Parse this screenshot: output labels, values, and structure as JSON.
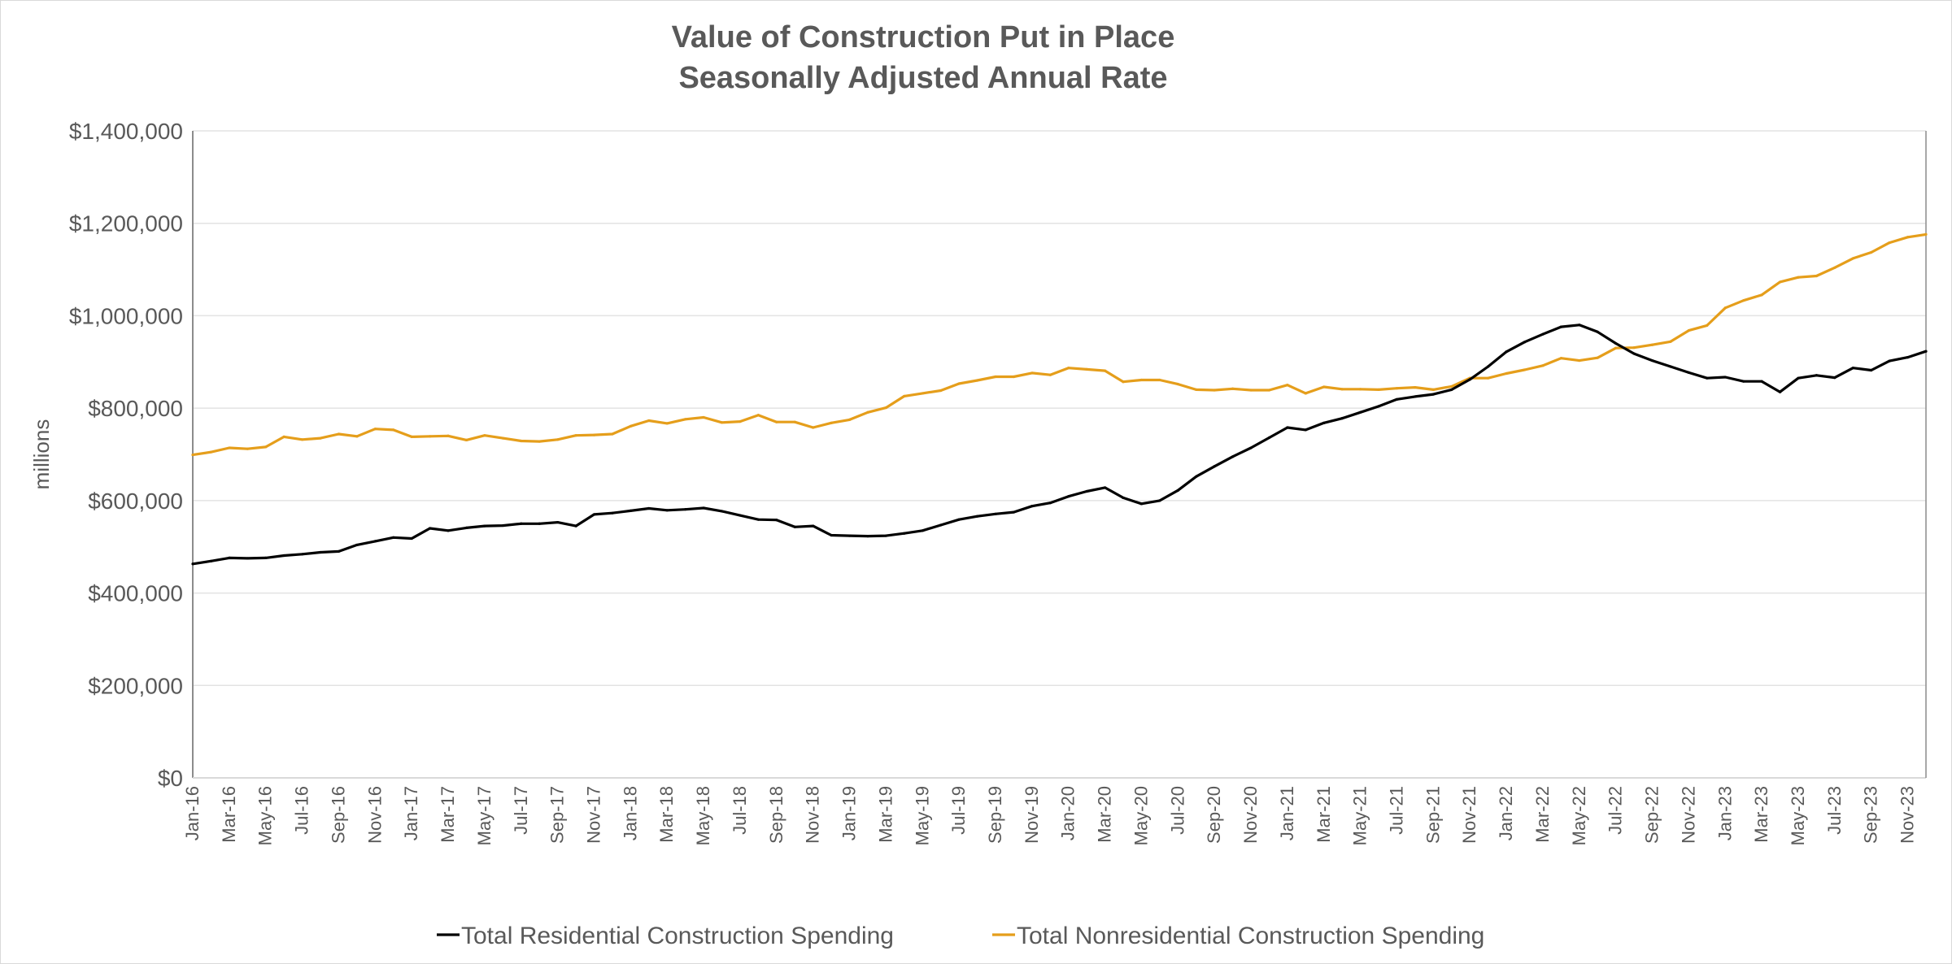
{
  "chart_data": {
    "type": "line",
    "title": [
      "Value of Construction Put in Place",
      "Seasonally Adjusted Annual Rate"
    ],
    "xlabel": "",
    "ylabel": "millions",
    "ylim": [
      0,
      1400000
    ],
    "yticks": [
      0,
      200000,
      400000,
      600000,
      800000,
      1000000,
      1200000,
      1400000
    ],
    "ytick_labels": [
      "$0",
      "$200,000",
      "$400,000",
      "$600,000",
      "$800,000",
      "$1,000,000",
      "$1,200,000",
      "$1,400,000"
    ],
    "grid": true,
    "legend_position": "bottom",
    "x": [
      "Jan-16",
      "Feb-16",
      "Mar-16",
      "Apr-16",
      "May-16",
      "Jun-16",
      "Jul-16",
      "Aug-16",
      "Sep-16",
      "Oct-16",
      "Nov-16",
      "Dec-16",
      "Jan-17",
      "Feb-17",
      "Mar-17",
      "Apr-17",
      "May-17",
      "Jun-17",
      "Jul-17",
      "Aug-17",
      "Sep-17",
      "Oct-17",
      "Nov-17",
      "Dec-17",
      "Jan-18",
      "Feb-18",
      "Mar-18",
      "Apr-18",
      "May-18",
      "Jun-18",
      "Jul-18",
      "Aug-18",
      "Sep-18",
      "Oct-18",
      "Nov-18",
      "Dec-18",
      "Jan-19",
      "Feb-19",
      "Mar-19",
      "Apr-19",
      "May-19",
      "Jun-19",
      "Jul-19",
      "Aug-19",
      "Sep-19",
      "Oct-19",
      "Nov-19",
      "Dec-19",
      "Jan-20",
      "Feb-20",
      "Mar-20",
      "Apr-20",
      "May-20",
      "Jun-20",
      "Jul-20",
      "Aug-20",
      "Sep-20",
      "Oct-20",
      "Nov-20",
      "Dec-20",
      "Jan-21",
      "Feb-21",
      "Mar-21",
      "Apr-21",
      "May-21",
      "Jun-21",
      "Jul-21",
      "Aug-21",
      "Sep-21",
      "Oct-21",
      "Nov-21",
      "Dec-21",
      "Jan-22",
      "Feb-22",
      "Mar-22",
      "Apr-22",
      "May-22",
      "Jun-22",
      "Jul-22",
      "Aug-22",
      "Sep-22",
      "Oct-22",
      "Nov-22",
      "Dec-22",
      "Jan-23",
      "Feb-23",
      "Mar-23",
      "Apr-23",
      "May-23",
      "Jun-23",
      "Jul-23",
      "Aug-23",
      "Sep-23",
      "Oct-23",
      "Nov-23",
      "Dec-23"
    ],
    "series": [
      {
        "name": "Total Residential Construction Spending",
        "color": "#000000",
        "values": [
          463000,
          469000,
          476000,
          475000,
          476000,
          481000,
          484000,
          488000,
          490000,
          504000,
          512000,
          520000,
          518000,
          540000,
          535000,
          541000,
          545000,
          546000,
          550000,
          550000,
          553000,
          545000,
          570000,
          573000,
          578000,
          583000,
          579000,
          581000,
          584000,
          577000,
          568000,
          559000,
          558000,
          543000,
          545000,
          525000,
          524000,
          523000,
          524000,
          529000,
          535000,
          547000,
          559000,
          566000,
          571000,
          575000,
          588000,
          595000,
          609000,
          620000,
          628000,
          606000,
          593000,
          600000,
          622000,
          652000,
          674000,
          695000,
          714000,
          736000,
          758000,
          753000,
          768000,
          778000,
          791000,
          804000,
          819000,
          825000,
          830000,
          840000,
          862000,
          890000,
          922000,
          943000,
          960000,
          976000,
          980000,
          965000,
          940000,
          918000,
          903000,
          890000,
          877000,
          865000,
          867000,
          858000,
          858000,
          835000,
          865000,
          871000,
          866000,
          887000,
          882000,
          902000,
          910000,
          923000
        ]
      },
      {
        "name": "Total Nonresidential Construction Spending",
        "color": "#E59E1B",
        "values": [
          699000,
          705000,
          714000,
          712000,
          716000,
          738000,
          732000,
          735000,
          744000,
          739000,
          755000,
          753000,
          738000,
          739000,
          740000,
          731000,
          741000,
          735000,
          729000,
          728000,
          732000,
          741000,
          742000,
          744000,
          761000,
          773000,
          767000,
          776000,
          780000,
          769000,
          771000,
          785000,
          770000,
          770000,
          758000,
          768000,
          775000,
          791000,
          801000,
          826000,
          832000,
          838000,
          853000,
          860000,
          868000,
          868000,
          876000,
          872000,
          887000,
          884000,
          881000,
          857000,
          861000,
          861000,
          852000,
          840000,
          839000,
          842000,
          839000,
          839000,
          850000,
          832000,
          846000,
          841000,
          841000,
          840000,
          843000,
          845000,
          840000,
          847000,
          865000,
          865000,
          875000,
          883000,
          892000,
          908000,
          903000,
          909000,
          930000,
          931000,
          937000,
          944000,
          968000,
          979000,
          1017000,
          1033000,
          1045000,
          1073000,
          1083000,
          1086000,
          1104000,
          1124000,
          1137000,
          1158000,
          1170000,
          1176000
        ]
      }
    ]
  }
}
